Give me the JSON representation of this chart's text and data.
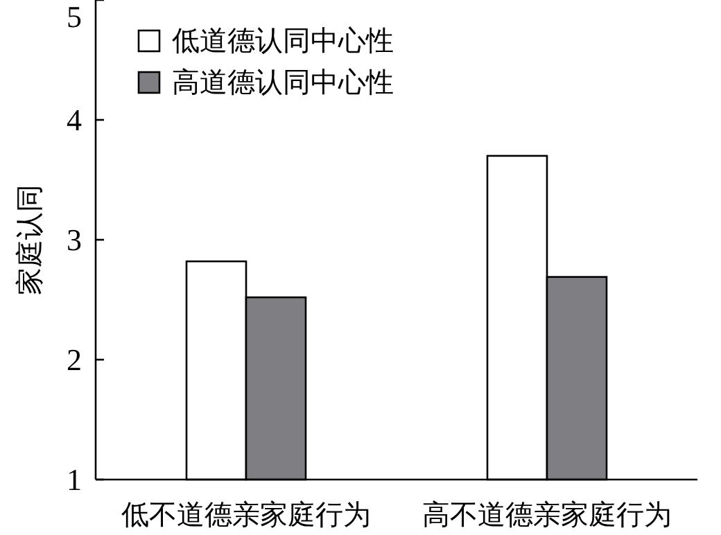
{
  "chart_data": {
    "type": "bar",
    "ylabel": "家庭认同",
    "categories": [
      "低不道德亲家庭行为",
      "高不道德亲家庭行为"
    ],
    "series": [
      {
        "name": "低道德认同中心性",
        "color": "#ffffff",
        "values": [
          2.82,
          3.7
        ]
      },
      {
        "name": "高道德认同中心性",
        "color": "#7f7f83",
        "values": [
          2.52,
          2.69
        ]
      }
    ],
    "ylim": [
      1,
      5
    ],
    "yticks": [
      1,
      2,
      3,
      4,
      5
    ],
    "grid": false,
    "legend": "top"
  }
}
